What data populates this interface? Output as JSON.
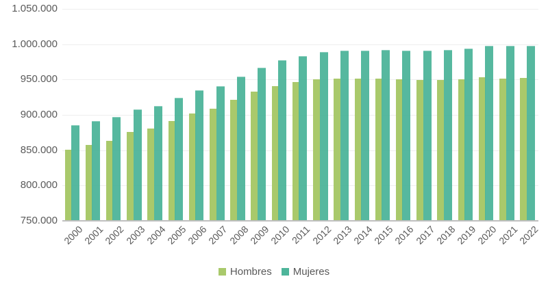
{
  "chart_data": {
    "type": "bar",
    "title": "",
    "xlabel": "",
    "ylabel": "",
    "ylim": [
      750000,
      1050000
    ],
    "yticks": [
      750000,
      800000,
      850000,
      900000,
      950000,
      1000000,
      1050000
    ],
    "ytick_labels": [
      "750.000",
      "800.000",
      "850.000",
      "900.000",
      "950.000",
      "1.000.000",
      "1.050.000"
    ],
    "grid": true,
    "legend_position": "bottom",
    "categories": [
      "2000",
      "2001",
      "2002",
      "2003",
      "2004",
      "2005",
      "2006",
      "2007",
      "2008",
      "2009",
      "2010",
      "2011",
      "2012",
      "2013",
      "2014",
      "2015",
      "2016",
      "2017",
      "2018",
      "2019",
      "2020",
      "2021",
      "2022"
    ],
    "series": [
      {
        "name": "Hombres",
        "color": "#a9c96b",
        "values": [
          851000,
          857000,
          863000,
          876000,
          881000,
          891000,
          902000,
          908500,
          921000,
          933000,
          940500,
          946000,
          950700,
          951600,
          951000,
          951000,
          950000,
          949000,
          949000,
          950000,
          953000,
          951500,
          952000
        ]
      },
      {
        "name": "Mujeres",
        "color": "#4db59a",
        "values": [
          885500,
          891000,
          897000,
          908000,
          913000,
          924000,
          934500,
          941000,
          954000,
          967000,
          977000,
          983500,
          989000,
          991000,
          990500,
          991500,
          991000,
          991000,
          991500,
          994000,
          998000,
          997500,
          997500
        ]
      }
    ]
  },
  "legend": {
    "items": [
      {
        "label": "Hombres",
        "color": "#a9c96b"
      },
      {
        "label": "Mujeres",
        "color": "#4db59a"
      }
    ]
  }
}
